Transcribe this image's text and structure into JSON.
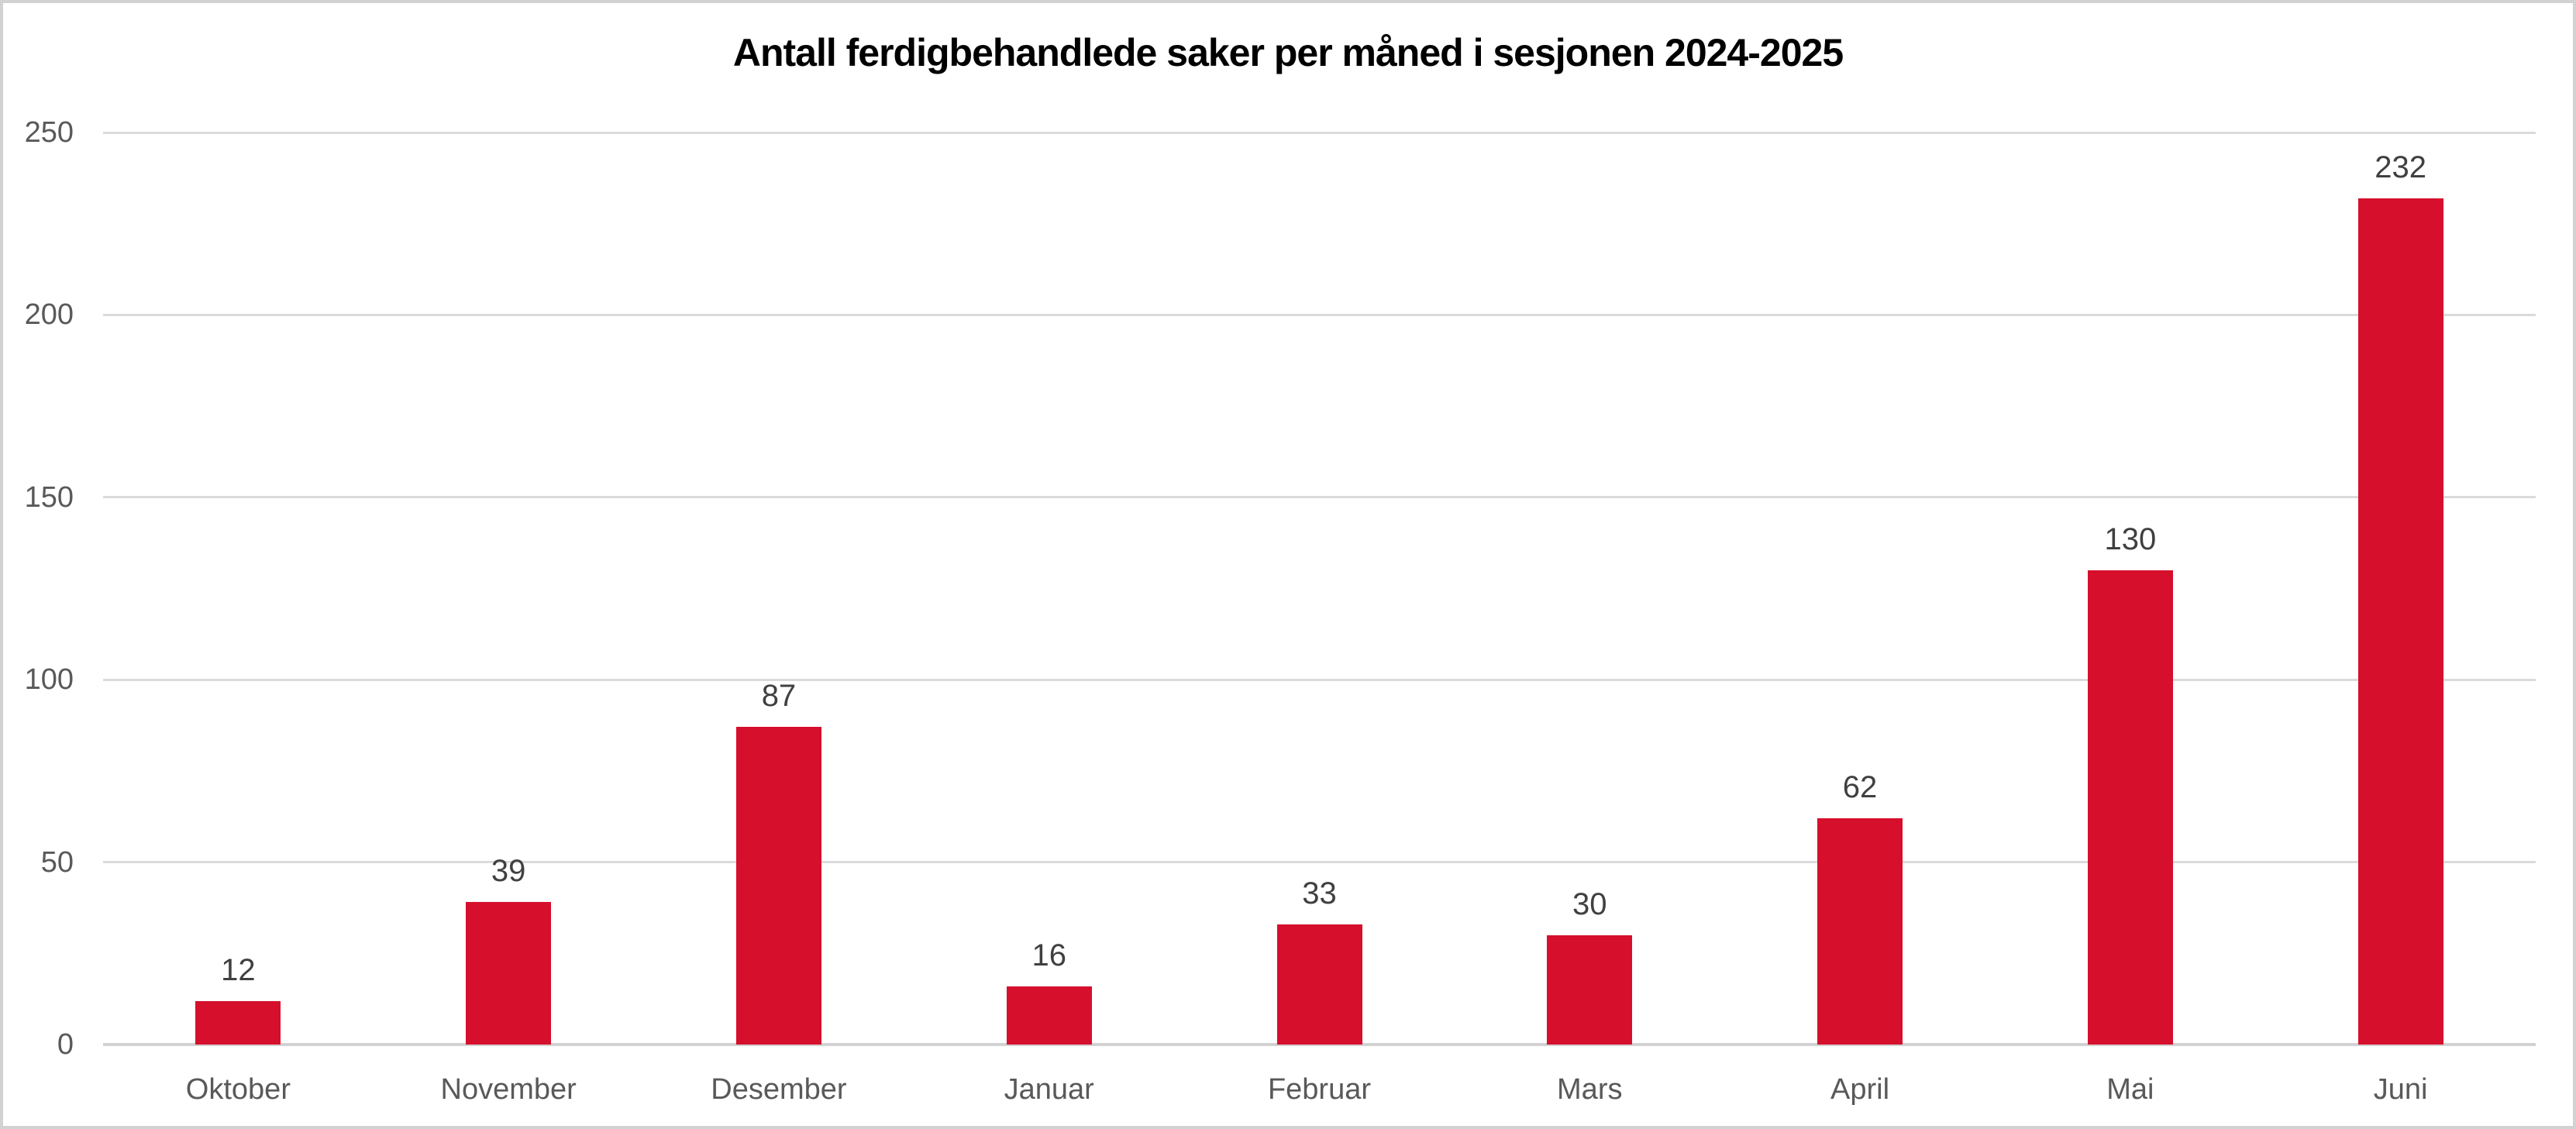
{
  "chart_data": {
    "type": "bar",
    "title": "Antall ferdigbehandlede saker per måned i sesjonen 2024-2025",
    "categories": [
      "Oktober",
      "November",
      "Desember",
      "Januar",
      "Februar",
      "Mars",
      "April",
      "Mai",
      "Juni"
    ],
    "values": [
      12,
      39,
      87,
      16,
      33,
      30,
      62,
      130,
      232
    ],
    "data_labels": [
      "12",
      "39",
      "87",
      "16",
      "33",
      "30",
      "62",
      "130",
      "232"
    ],
    "xlabel": "",
    "ylabel": "",
    "ylim": [
      0,
      250
    ],
    "yticks": [
      0,
      50,
      100,
      150,
      200,
      250
    ],
    "grid": true,
    "legend": false,
    "legend_position": "none",
    "colors": {
      "bar": "#d50f2c",
      "gridline": "#dbdbdb",
      "axis_line": "#d2d2d2",
      "tick_label": "#595959",
      "data_label": "#404040",
      "title": "#000000",
      "background": "#ffffff",
      "frame_border": "#d2d2d2"
    }
  }
}
